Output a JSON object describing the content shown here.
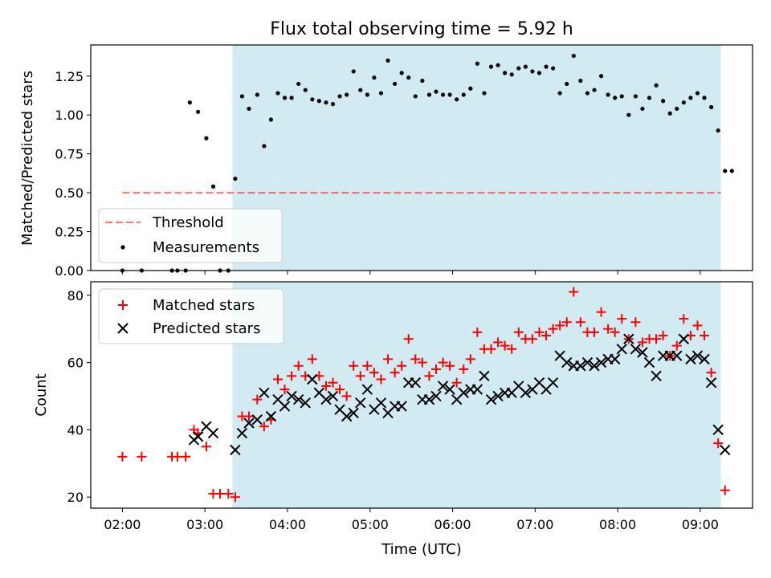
{
  "title": "Flux total observing time = 5.92 h",
  "colors": {
    "observing_span": "#add8e6",
    "threshold": "#ff0000",
    "measurements": "#000000",
    "matched": "#ff0000",
    "predicted": "#000000"
  },
  "chart_data": [
    {
      "type": "scatter",
      "panel": "top",
      "title": "Flux total observing time = 5.92 h",
      "xlabel": "",
      "ylabel": "Matched/Predicted stars",
      "xlim": [
        "01:37",
        "09:38"
      ],
      "ylim": [
        0,
        1.45
      ],
      "yticks": [
        0.0,
        0.25,
        0.5,
        0.75,
        1.0,
        1.25
      ],
      "ytick_labels": [
        "0.00",
        "0.25",
        "0.50",
        "0.75",
        "1.00",
        "1.25"
      ],
      "grid": false,
      "legend": "lower-left",
      "shaded_span": [
        "03:20",
        "09:15"
      ],
      "threshold": {
        "name": "Threshold",
        "y": 0.5,
        "x_range": [
          "02:00",
          "09:15"
        ],
        "style": "dashed"
      },
      "series": [
        {
          "name": "Measurements",
          "marker": "dot",
          "x": [
            "02:00",
            "02:14",
            "02:36",
            "02:40",
            "02:46",
            "02:49",
            "02:55",
            "03:01",
            "03:06",
            "03:11",
            "03:17",
            "03:22",
            "03:27",
            "03:32",
            "03:38",
            "03:43",
            "03:48",
            "03:53",
            "03:58",
            "04:03",
            "04:08",
            "04:13",
            "04:18",
            "04:23",
            "04:28",
            "04:33",
            "04:38",
            "04:43",
            "04:48",
            "04:53",
            "04:58",
            "05:03",
            "05:08",
            "05:13",
            "05:18",
            "05:23",
            "05:28",
            "05:33",
            "05:38",
            "05:43",
            "05:48",
            "05:53",
            "05:58",
            "06:03",
            "06:08",
            "06:13",
            "06:18",
            "06:23",
            "06:28",
            "06:33",
            "06:38",
            "06:43",
            "06:48",
            "06:53",
            "06:58",
            "07:03",
            "07:08",
            "07:13",
            "07:18",
            "07:23",
            "07:28",
            "07:33",
            "07:38",
            "07:43",
            "07:48",
            "07:53",
            "07:58",
            "08:03",
            "08:08",
            "08:13",
            "08:18",
            "08:23",
            "08:28",
            "08:33",
            "08:38",
            "08:43",
            "08:48",
            "08:53",
            "08:58",
            "09:03",
            "09:08",
            "09:13",
            "09:18",
            "09:23"
          ],
          "y": [
            0,
            0,
            0,
            0,
            0,
            1.08,
            1.02,
            0.85,
            0.54,
            0,
            0,
            0.59,
            1.12,
            1.04,
            1.13,
            0.8,
            0.97,
            1.14,
            1.11,
            1.11,
            1.2,
            1.16,
            1.1,
            1.09,
            1.08,
            1.07,
            1.12,
            1.13,
            1.28,
            1.16,
            1.13,
            1.24,
            1.14,
            1.35,
            1.2,
            1.27,
            1.24,
            1.12,
            1.22,
            1.13,
            1.15,
            1.13,
            1.13,
            1.1,
            1.13,
            1.17,
            1.33,
            1.14,
            1.31,
            1.32,
            1.27,
            1.26,
            1.3,
            1.31,
            1.28,
            1.27,
            1.31,
            1.3,
            1.14,
            1.2,
            1.38,
            1.22,
            1.14,
            1.16,
            1.25,
            1.13,
            1.11,
            1.12,
            1.0,
            1.12,
            1.04,
            1.11,
            1.19,
            1.09,
            1.01,
            1.04,
            1.08,
            1.11,
            1.14,
            1.11,
            1.05,
            0.9,
            0.64,
            0.64
          ]
        }
      ]
    },
    {
      "type": "scatter",
      "panel": "bottom",
      "xlabel": "Time (UTC)",
      "ylabel": "Count",
      "xlim": [
        "01:37",
        "09:38"
      ],
      "ylim": [
        16.7,
        84
      ],
      "xticks": [
        "02:00",
        "03:00",
        "04:00",
        "05:00",
        "06:00",
        "07:00",
        "08:00",
        "09:00"
      ],
      "yticks": [
        20,
        40,
        60,
        80
      ],
      "grid": false,
      "legend": "top-left",
      "shaded_span": [
        "03:20",
        "09:15"
      ],
      "series": [
        {
          "name": "Matched stars",
          "marker": "plus",
          "x": [
            "02:00",
            "02:14",
            "02:36",
            "02:40",
            "02:46",
            "02:52",
            "02:55",
            "03:01",
            "03:06",
            "03:11",
            "03:17",
            "03:22",
            "03:27",
            "03:32",
            "03:38",
            "03:43",
            "03:48",
            "03:53",
            "03:58",
            "04:03",
            "04:08",
            "04:13",
            "04:18",
            "04:23",
            "04:28",
            "04:33",
            "04:38",
            "04:43",
            "04:48",
            "04:53",
            "04:58",
            "05:03",
            "05:08",
            "05:13",
            "05:18",
            "05:23",
            "05:28",
            "05:33",
            "05:38",
            "05:43",
            "05:48",
            "05:53",
            "05:58",
            "06:03",
            "06:08",
            "06:13",
            "06:18",
            "06:23",
            "06:28",
            "06:33",
            "06:38",
            "06:43",
            "06:48",
            "06:53",
            "06:58",
            "07:03",
            "07:08",
            "07:13",
            "07:18",
            "07:23",
            "07:28",
            "07:33",
            "07:38",
            "07:43",
            "07:48",
            "07:53",
            "07:58",
            "08:03",
            "08:08",
            "08:13",
            "08:18",
            "08:23",
            "08:28",
            "08:33",
            "08:38",
            "08:43",
            "08:48",
            "08:53",
            "08:58",
            "09:03",
            "09:08",
            "09:13",
            "09:18"
          ],
          "y": [
            32,
            32,
            32,
            32,
            32,
            40,
            39,
            35,
            21,
            21,
            21,
            20,
            44,
            44,
            49,
            41,
            43,
            55,
            52,
            56,
            59,
            56,
            61,
            56,
            53,
            54,
            52,
            50,
            59,
            56,
            59,
            57,
            55,
            61,
            57,
            59,
            67,
            61,
            60,
            56,
            58,
            60,
            59,
            54,
            58,
            61,
            69,
            64,
            64,
            66,
            65,
            64,
            69,
            67,
            67,
            69,
            68,
            70,
            71,
            72,
            81,
            72,
            69,
            69,
            75,
            70,
            69,
            73,
            67,
            72,
            66,
            67,
            67,
            68,
            62,
            65,
            73,
            68,
            71,
            68,
            57,
            36,
            22
          ]
        },
        {
          "name": "Predicted stars",
          "marker": "x",
          "x": [
            "02:52",
            "02:55",
            "03:01",
            "03:06",
            "03:22",
            "03:27",
            "03:32",
            "03:38",
            "03:43",
            "03:48",
            "03:53",
            "03:58",
            "04:03",
            "04:08",
            "04:13",
            "04:18",
            "04:23",
            "04:28",
            "04:33",
            "04:38",
            "04:43",
            "04:48",
            "04:53",
            "04:58",
            "05:03",
            "05:08",
            "05:13",
            "05:18",
            "05:23",
            "05:28",
            "05:33",
            "05:38",
            "05:43",
            "05:48",
            "05:53",
            "05:58",
            "06:03",
            "06:08",
            "06:13",
            "06:18",
            "06:23",
            "06:28",
            "06:33",
            "06:38",
            "06:43",
            "06:48",
            "06:53",
            "06:58",
            "07:03",
            "07:08",
            "07:13",
            "07:18",
            "07:23",
            "07:28",
            "07:33",
            "07:38",
            "07:43",
            "07:48",
            "07:53",
            "07:58",
            "08:03",
            "08:08",
            "08:13",
            "08:18",
            "08:23",
            "08:28",
            "08:33",
            "08:38",
            "08:43",
            "08:48",
            "08:53",
            "08:58",
            "09:03",
            "09:08",
            "09:13",
            "09:18"
          ],
          "y": [
            37,
            38,
            41,
            39,
            34,
            39,
            42,
            43,
            51,
            44,
            49,
            47,
            50,
            49,
            48,
            55,
            51,
            49,
            50,
            46,
            44,
            45,
            48,
            52,
            46,
            48,
            45,
            47,
            47,
            54,
            54,
            49,
            49,
            50,
            53,
            52,
            49,
            51,
            52,
            52,
            56,
            49,
            50,
            51,
            51,
            53,
            51,
            52,
            54,
            52,
            54,
            62,
            60,
            59,
            59,
            60,
            59,
            60,
            61,
            61,
            64,
            67,
            64,
            63,
            60,
            56,
            62,
            62,
            62,
            67,
            61,
            62,
            61,
            54,
            40,
            34
          ]
        }
      ]
    }
  ]
}
